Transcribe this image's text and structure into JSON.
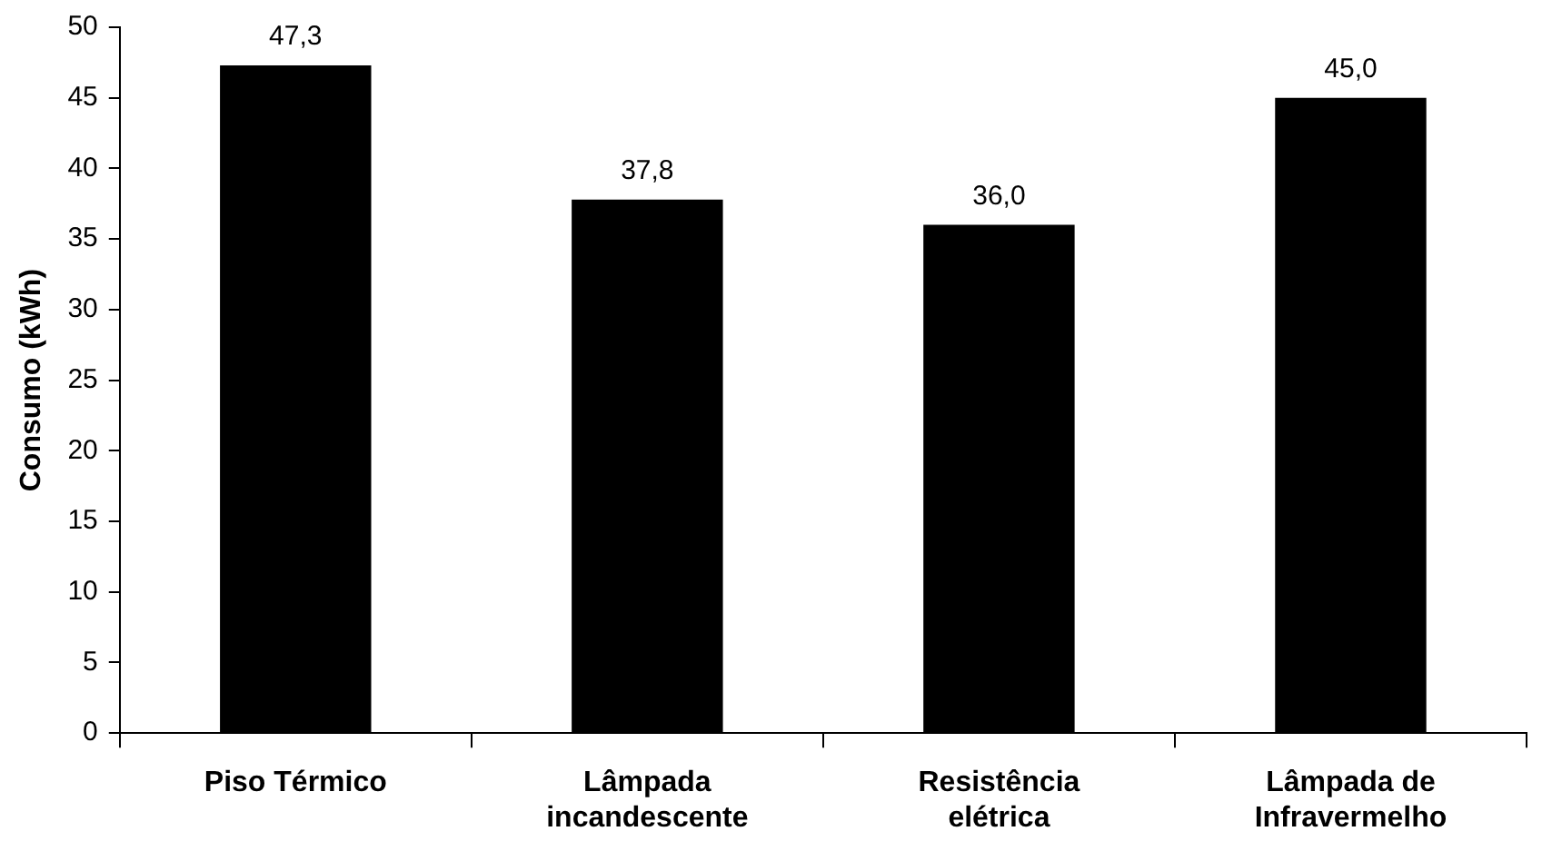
{
  "chart_data": {
    "type": "bar",
    "ylabel": "Consumo (kWh)",
    "categories": [
      "Piso Térmico",
      "Lâmpada incandescente",
      "Resistência elétrica",
      "Lâmpada de Infravermelho"
    ],
    "values": [
      47.3,
      37.8,
      36.0,
      45.0
    ],
    "value_labels": [
      "47,3",
      "37,8",
      "36,0",
      "45,0"
    ],
    "color": "#000000",
    "ylim": [
      0,
      50
    ],
    "yticks": [
      0,
      5,
      10,
      15,
      20,
      25,
      30,
      35,
      40,
      45,
      50
    ],
    "grid": false,
    "legend": false
  }
}
